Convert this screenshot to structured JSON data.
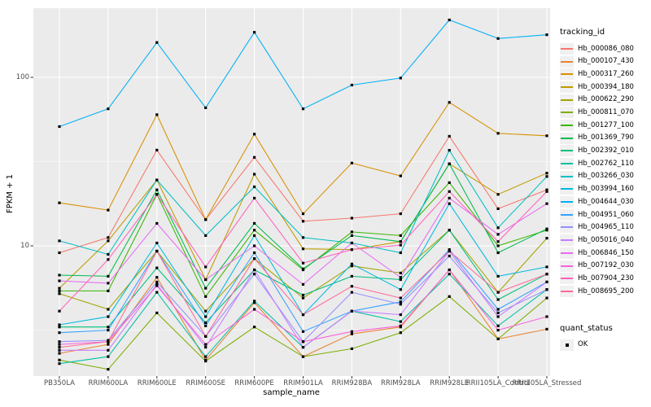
{
  "chart_data": {
    "type": "line",
    "title": "",
    "xlabel": "sample_name",
    "ylabel": "FPKM + 1",
    "y_scale": "log10",
    "y_ticks": [
      {
        "label": "100",
        "value": 100
      },
      {
        "label": "10",
        "value": 10
      }
    ],
    "y_minor": [
      31.62,
      3.162
    ],
    "ylim": [
      1.45,
      280
    ],
    "grid": "on",
    "legend_position": "right",
    "categories": [
      "PB350LA",
      "RRIM600LA",
      "RRIM600LE",
      "RRIM600SE",
      "RRIM600PE",
      "RRIM901LA",
      "RRIM928BA",
      "RRIM928LA",
      "RRIM928LE",
      "RRII105LA_Control",
      "RRII105LA_Stressed"
    ],
    "legend": {
      "title": "tracking_id"
    },
    "quant_legend": {
      "title": "quant_status",
      "items": [
        {
          "label": "OK",
          "marker": "square",
          "color": "#000000"
        }
      ]
    },
    "style": {
      "panel_bg": "#EBEBEB",
      "grid_color": "#FFFFFF",
      "tick_mark_color": "#333333",
      "tick_label_color": "#4D4D4D",
      "text_color": "#000000",
      "legend_key_bg": "#F0F0F0",
      "point_color": "#000000"
    },
    "series": [
      {
        "name": "Hb_000086_080",
        "color": "#F8766D",
        "values": [
          9.1,
          11.2,
          37,
          14.3,
          33.5,
          14,
          14.6,
          15.5,
          44.7,
          16.6,
          21.5
        ]
      },
      {
        "name": "Hb_000107_430",
        "color": "#EA8331",
        "values": [
          2.3,
          2.6,
          6.5,
          2.1,
          4.6,
          2.2,
          3.0,
          3.3,
          7.2,
          2.8,
          3.2
        ]
      },
      {
        "name": "Hb_000317_260",
        "color": "#D89000",
        "values": [
          18,
          16.3,
          60,
          14.3,
          46,
          15.5,
          31,
          26,
          71,
          46.5,
          45
        ]
      },
      {
        "name": "Hb_000394_180",
        "color": "#C09B00",
        "values": [
          5.6,
          10.7,
          24.6,
          6.3,
          26.6,
          9.6,
          9.5,
          10.6,
          30.7,
          20.2,
          27
        ]
      },
      {
        "name": "Hb_000622_290",
        "color": "#A3A500",
        "values": [
          5.2,
          4.2,
          9.3,
          4.1,
          8.4,
          4.9,
          7.6,
          6.9,
          12.4,
          5.3,
          11.1
        ]
      },
      {
        "name": "Hb_000811_070",
        "color": "#7CAE00",
        "values": [
          2.1,
          1.85,
          4.0,
          2.07,
          3.3,
          2.2,
          2.45,
          3.05,
          5.0,
          2.8,
          4.9
        ]
      },
      {
        "name": "Hb_001277_100",
        "color": "#39B600",
        "values": [
          5.4,
          5.4,
          20.2,
          5.0,
          12.4,
          7.2,
          12.1,
          11.5,
          23.7,
          10,
          12.4
        ]
      },
      {
        "name": "Hb_001369_790",
        "color": "#00BB4E",
        "values": [
          6.7,
          6.6,
          21.5,
          5.6,
          13.6,
          7.3,
          11.5,
          10.6,
          30.7,
          9.1,
          12.6
        ]
      },
      {
        "name": "Hb_002392_010",
        "color": "#00BF7D",
        "values": [
          3.3,
          3.3,
          7.4,
          3.5,
          7.2,
          5.1,
          6.6,
          6.3,
          12.4,
          4.8,
          6.8
        ]
      },
      {
        "name": "Hb_002762_110",
        "color": "#00C1A3",
        "values": [
          2.0,
          2.2,
          5.3,
          2.2,
          4.7,
          2.5,
          4.1,
          3.55,
          6.8,
          3.35,
          5.5
        ]
      },
      {
        "name": "Hb_003266_030",
        "color": "#00BFC4",
        "values": [
          10.7,
          8.9,
          24.6,
          11.5,
          22.4,
          11.2,
          10.4,
          9.1,
          36.9,
          12.8,
          25.8
        ]
      },
      {
        "name": "Hb_003994_160",
        "color": "#00BAE0",
        "values": [
          3.4,
          3.8,
          10.4,
          3.8,
          11.5,
          3.9,
          7.8,
          5.5,
          17.8,
          6.6,
          7.5
        ]
      },
      {
        "name": "Hb_004644_030",
        "color": "#00B0F6",
        "values": [
          51,
          65,
          161,
          66,
          185,
          65,
          90,
          99,
          219,
          170,
          179
        ]
      },
      {
        "name": "Hb_004951_060",
        "color": "#35A2FF",
        "values": [
          3.05,
          3.16,
          9.3,
          3.35,
          9.1,
          3.1,
          4.1,
          4.65,
          9.5,
          4.2,
          6.1
        ]
      },
      {
        "name": "Hb_004965_110",
        "color": "#9590FF",
        "values": [
          2.7,
          2.75,
          6.1,
          2.9,
          6.8,
          2.7,
          5.3,
          4.5,
          8.7,
          4.0,
          5.5
        ]
      },
      {
        "name": "Hb_005016_040",
        "color": "#C77CFF",
        "values": [
          2.4,
          2.4,
          5.9,
          2.5,
          7.2,
          2.5,
          4.1,
          3.9,
          9.3,
          3.8,
          6.1
        ]
      },
      {
        "name": "Hb_006846_150",
        "color": "#E76BF3",
        "values": [
          6.2,
          6.0,
          13.6,
          6.3,
          10.0,
          5.9,
          10.4,
          6.5,
          19.2,
          11.7,
          17.8
        ]
      },
      {
        "name": "Hb_007192_030",
        "color": "#FA62DB",
        "values": [
          2.6,
          2.7,
          5.8,
          2.6,
          4.2,
          2.7,
          3.1,
          3.35,
          7.2,
          3.16,
          3.8
        ]
      },
      {
        "name": "Hb_007904_230",
        "color": "#FF62BC",
        "values": [
          4.1,
          8.3,
          20.2,
          7.5,
          19.2,
          7.9,
          9.5,
          10.1,
          21.0,
          10.6,
          21.0
        ]
      },
      {
        "name": "Hb_008695_200",
        "color": "#FF6A98",
        "values": [
          2.5,
          2.7,
          9.3,
          2.9,
          8.4,
          3.9,
          5.75,
          4.9,
          9.3,
          5.3,
          6.8
        ]
      }
    ]
  }
}
